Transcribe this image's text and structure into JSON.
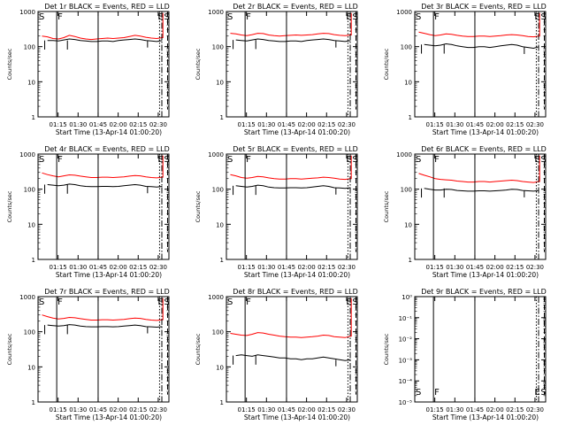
{
  "axis_labels": {
    "ylabel": "Counts/sec",
    "xlabel": "Start Time (13-Apr-14 01:00:20)"
  },
  "colors": {
    "events": "#000000",
    "lld": "#ff0000",
    "axes": "#000000"
  },
  "marker_labels": {
    "s": "S",
    "f": "F",
    "e": "E",
    "s2": "S"
  },
  "x_ticks": [
    "01:15",
    "01:30",
    "01:45",
    "02:00",
    "02:15",
    "02:30"
  ],
  "y_ticks_log": [
    "1",
    "10",
    "100",
    "1000"
  ],
  "y_ticks_small": [
    "10⁰",
    "10⁻¹",
    "10⁻²",
    "10⁻³",
    "10⁻⁴",
    "10⁻⁵"
  ],
  "chart_data": [
    {
      "type": "line",
      "title": "Det 1r BLACK = Events, RED = LLD",
      "yscale": "log",
      "ylim": [
        1,
        1000
      ],
      "x_range_min": [
        0,
        100
      ],
      "series": [
        {
          "color": "red",
          "values": [
            200,
            190,
            170,
            165,
            180,
            210,
            195,
            175,
            165,
            160,
            165,
            170,
            175,
            170,
            175,
            180,
            195,
            210,
            200,
            185,
            175,
            170,
            180,
            1000
          ]
        },
        {
          "color": "black",
          "values": [
            140,
            150,
            150,
            145,
            155,
            165,
            160,
            150,
            145,
            140,
            140,
            145,
            145,
            140,
            150,
            155,
            160,
            165,
            160,
            150,
            145,
            140,
            150,
            150
          ]
        }
      ],
      "markers": {
        "S": 0,
        "F": 14,
        "E": 91,
        "S2": 94,
        "dot": 91,
        "dash": 97,
        "dashdot": 105
      }
    },
    {
      "type": "line",
      "title": "Det 2r BLACK = Events, RED = LLD",
      "yscale": "log",
      "ylim": [
        1,
        1000
      ],
      "series": [
        {
          "color": "red",
          "values": [
            240,
            230,
            215,
            205,
            220,
            240,
            235,
            215,
            205,
            200,
            205,
            210,
            215,
            210,
            215,
            220,
            230,
            240,
            235,
            220,
            210,
            205,
            215,
            1000
          ]
        },
        {
          "color": "black",
          "values": [
            150,
            155,
            150,
            145,
            155,
            165,
            160,
            150,
            145,
            140,
            140,
            145,
            145,
            140,
            150,
            155,
            160,
            165,
            160,
            150,
            145,
            140,
            150,
            150
          ]
        }
      ],
      "markers": {
        "S": 0,
        "F": 14,
        "E": 91,
        "S2": 94,
        "dot": 91,
        "dash": 97,
        "dashdot": 105
      }
    },
    {
      "type": "line",
      "title": "Det 3r BLACK = Events, RED = LLD",
      "yscale": "log",
      "ylim": [
        1,
        1000
      ],
      "series": [
        {
          "color": "red",
          "values": [
            260,
            240,
            220,
            205,
            215,
            230,
            225,
            210,
            200,
            195,
            195,
            200,
            200,
            195,
            200,
            205,
            215,
            220,
            215,
            205,
            195,
            190,
            200,
            1000
          ]
        },
        {
          "color": "black",
          "values": [
            110,
            115,
            110,
            105,
            110,
            120,
            115,
            105,
            100,
            95,
            95,
            100,
            100,
            95,
            100,
            105,
            110,
            115,
            110,
            100,
            95,
            90,
            100,
            100
          ]
        }
      ],
      "markers": {
        "S": 0,
        "F": 14,
        "E": 91,
        "S2": 94,
        "dot": 91,
        "dash": 97,
        "dashdot": 105
      }
    },
    {
      "type": "line",
      "title": "Det 4r BLACK = Events, RED = LLD",
      "yscale": "log",
      "ylim": [
        1,
        1000
      ],
      "series": [
        {
          "color": "red",
          "values": [
            290,
            260,
            240,
            225,
            240,
            255,
            250,
            235,
            225,
            215,
            215,
            220,
            220,
            215,
            220,
            225,
            235,
            245,
            240,
            225,
            215,
            210,
            220,
            1000
          ]
        },
        {
          "color": "black",
          "values": [
            130,
            135,
            130,
            125,
            130,
            140,
            135,
            125,
            120,
            118,
            118,
            120,
            120,
            118,
            120,
            125,
            130,
            135,
            130,
            120,
            118,
            115,
            120,
            120
          ]
        }
      ],
      "markers": {
        "S": 0,
        "F": 14,
        "E": 91,
        "S2": 94,
        "dot": 91,
        "dash": 97,
        "dashdot": 105
      }
    },
    {
      "type": "line",
      "title": "Det 5r BLACK = Events, RED = LLD",
      "yscale": "log",
      "ylim": [
        1,
        1000
      ],
      "series": [
        {
          "color": "red",
          "values": [
            260,
            240,
            215,
            205,
            215,
            230,
            225,
            210,
            200,
            195,
            195,
            200,
            200,
            195,
            200,
            205,
            210,
            220,
            215,
            205,
            195,
            190,
            200,
            1000
          ]
        },
        {
          "color": "black",
          "values": [
            120,
            125,
            120,
            115,
            120,
            130,
            125,
            115,
            110,
            108,
            108,
            110,
            110,
            108,
            110,
            115,
            120,
            125,
            120,
            110,
            108,
            105,
            110,
            110
          ]
        }
      ],
      "markers": {
        "S": 0,
        "F": 14,
        "E": 91,
        "S2": 94,
        "dot": 91,
        "dash": 97,
        "dashdot": 105
      }
    },
    {
      "type": "line",
      "title": "Det 6r BLACK = Events, RED = LLD",
      "yscale": "log",
      "ylim": [
        1,
        1000
      ],
      "series": [
        {
          "color": "red",
          "values": [
            280,
            250,
            225,
            200,
            190,
            185,
            180,
            170,
            165,
            160,
            160,
            165,
            165,
            160,
            165,
            170,
            175,
            180,
            175,
            165,
            160,
            155,
            165,
            1000
          ]
        },
        {
          "color": "black",
          "values": [
            100,
            105,
            100,
            95,
            95,
            100,
            98,
            92,
            90,
            88,
            88,
            90,
            90,
            88,
            90,
            92,
            95,
            100,
            98,
            92,
            90,
            88,
            92,
            92
          ]
        }
      ],
      "markers": {
        "S": 0,
        "F": 14,
        "E": 91,
        "S2": 94,
        "dot": 91,
        "dash": 97,
        "dashdot": 105
      }
    },
    {
      "type": "line",
      "title": "Det 7r BLACK = Events, RED = LLD",
      "yscale": "log",
      "ylim": [
        1,
        1000
      ],
      "series": [
        {
          "color": "red",
          "values": [
            300,
            270,
            245,
            230,
            240,
            255,
            250,
            235,
            225,
            215,
            215,
            220,
            220,
            215,
            220,
            225,
            235,
            245,
            240,
            225,
            215,
            210,
            220,
            1000
          ]
        },
        {
          "color": "black",
          "values": [
            150,
            155,
            150,
            145,
            150,
            160,
            155,
            145,
            140,
            138,
            138,
            140,
            140,
            138,
            140,
            145,
            150,
            155,
            150,
            140,
            138,
            135,
            140,
            140
          ]
        }
      ],
      "markers": {
        "S": 0,
        "F": 14,
        "E": 91,
        "S2": 94,
        "dot": 91,
        "dash": 97,
        "dashdot": 105
      }
    },
    {
      "type": "line",
      "title": "Det 8r BLACK = Events, RED = LLD",
      "yscale": "log",
      "ylim": [
        1,
        1000
      ],
      "series": [
        {
          "color": "red",
          "values": [
            90,
            85,
            80,
            78,
            85,
            95,
            92,
            85,
            80,
            75,
            72,
            70,
            70,
            68,
            70,
            72,
            75,
            80,
            78,
            72,
            70,
            68,
            75,
            1000
          ]
        },
        {
          "color": "black",
          "values": [
            20,
            21,
            22,
            21,
            20,
            22,
            21,
            20,
            19,
            18,
            18,
            17,
            17,
            16,
            17,
            17,
            18,
            19,
            18,
            17,
            16,
            15,
            16,
            16
          ]
        }
      ],
      "markers": {
        "S": 0,
        "F": 14,
        "E": 91,
        "S2": 94,
        "dot": 91,
        "dash": 97,
        "dashdot": 105
      }
    },
    {
      "type": "line",
      "title": "Det 9r BLACK = Events, RED = LLD",
      "yscale": "log",
      "ylim": [
        1e-05,
        1
      ],
      "series": [],
      "markers": {
        "S": 0,
        "F": 14,
        "E": 91,
        "S2": 94,
        "dot": 91,
        "dash": 97,
        "dashdot": 105
      }
    }
  ]
}
